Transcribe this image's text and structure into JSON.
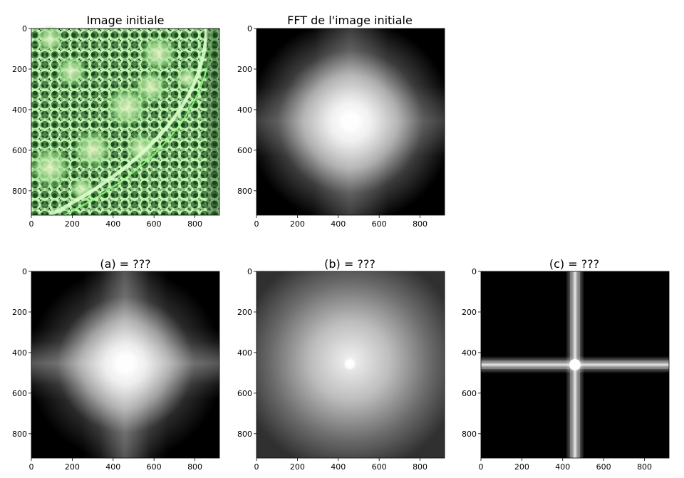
{
  "chart_data": [
    {
      "type": "heatmap",
      "title": "Image initiale",
      "image": "micrograph-plant-stem-cross-section",
      "xlim": [
        0,
        920
      ],
      "ylim": [
        920,
        0
      ],
      "xticks": [
        0,
        200,
        400,
        600,
        800
      ],
      "yticks": [
        0,
        200,
        400,
        600,
        800
      ],
      "colors": {
        "background": "#1f4a1c",
        "cells": "#0f3a12",
        "walls": "#9dff8a",
        "highlight": "#f3f7d8"
      }
    },
    {
      "type": "heatmap",
      "title": "FFT de l'image initiale",
      "image": "fft-magnitude-spectrum",
      "xlim": [
        0,
        920
      ],
      "ylim": [
        920,
        0
      ],
      "xticks": [
        0,
        200,
        400,
        600,
        800
      ],
      "yticks": [
        0,
        200,
        400,
        600,
        800
      ],
      "colors": {
        "background": "#000000",
        "peak": "#ffffff"
      }
    },
    {
      "type": "heatmap",
      "title": "(a) = ???",
      "image": "fft-spectrum-a",
      "xlim": [
        0,
        920
      ],
      "ylim": [
        920,
        0
      ],
      "xticks": [
        0,
        200,
        400,
        600,
        800
      ],
      "yticks": [
        0,
        200,
        400,
        600,
        800
      ],
      "colors": {
        "background": "#000000",
        "peak": "#ffffff"
      }
    },
    {
      "type": "heatmap",
      "title": "(b) = ???",
      "image": "fft-spectrum-b",
      "xlim": [
        0,
        920
      ],
      "ylim": [
        920,
        0
      ],
      "xticks": [
        0,
        200,
        400,
        600,
        800
      ],
      "yticks": [
        0,
        200,
        400,
        600,
        800
      ],
      "colors": {
        "background": "#444444",
        "peak": "#ffffff"
      }
    },
    {
      "type": "heatmap",
      "title": "(c) = ???",
      "image": "fft-spectrum-c-cross",
      "xlim": [
        0,
        920
      ],
      "ylim": [
        920,
        0
      ],
      "xticks": [
        0,
        200,
        400,
        600,
        800
      ],
      "yticks": [
        0,
        200,
        400,
        600,
        800
      ],
      "colors": {
        "background": "#000000",
        "peak": "#ffffff"
      }
    }
  ]
}
